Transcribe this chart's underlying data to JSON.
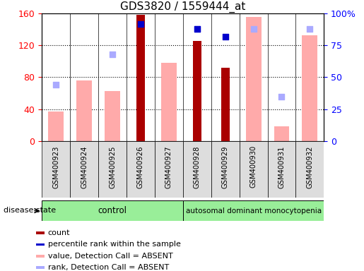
{
  "title": "GDS3820 / 1559444_at",
  "samples": [
    "GSM400923",
    "GSM400924",
    "GSM400925",
    "GSM400926",
    "GSM400927",
    "GSM400928",
    "GSM400929",
    "GSM400930",
    "GSM400931",
    "GSM400932"
  ],
  "count": [
    null,
    null,
    null,
    158,
    null,
    126,
    92,
    null,
    null,
    null
  ],
  "percentile_rank": [
    null,
    null,
    null,
    92,
    null,
    88,
    82,
    null,
    null,
    null
  ],
  "value_absent": [
    37,
    76,
    63,
    null,
    98,
    null,
    null,
    156,
    18,
    133
  ],
  "rank_absent": [
    44,
    null,
    68,
    null,
    null,
    88,
    null,
    88,
    35,
    88
  ],
  "left_ylim": [
    0,
    160
  ],
  "right_ylim": [
    0,
    100
  ],
  "left_yticks": [
    0,
    40,
    80,
    120,
    160
  ],
  "right_yticks": [
    0,
    25,
    50,
    75,
    100
  ],
  "right_yticklabels": [
    "0",
    "25",
    "50",
    "75",
    "100%"
  ],
  "count_color": "#aa0000",
  "percentile_color": "#0000cc",
  "value_absent_color": "#ffaaaa",
  "rank_absent_color": "#aaaaff",
  "background_color": "#ffffff",
  "plot_bg_color": "#ffffff",
  "disease_state_label": "disease state",
  "control_label": "control",
  "disease_label": "autosomal dominant monocytopenia",
  "control_color": "#99ee99",
  "disease_color": "#99ee99",
  "xticklabel_bg": "#dddddd",
  "legend_items": [
    {
      "label": "count",
      "color": "#aa0000"
    },
    {
      "label": "percentile rank within the sample",
      "color": "#0000cc"
    },
    {
      "label": "value, Detection Call = ABSENT",
      "color": "#ffaaaa"
    },
    {
      "label": "rank, Detection Call = ABSENT",
      "color": "#aaaaff"
    }
  ]
}
